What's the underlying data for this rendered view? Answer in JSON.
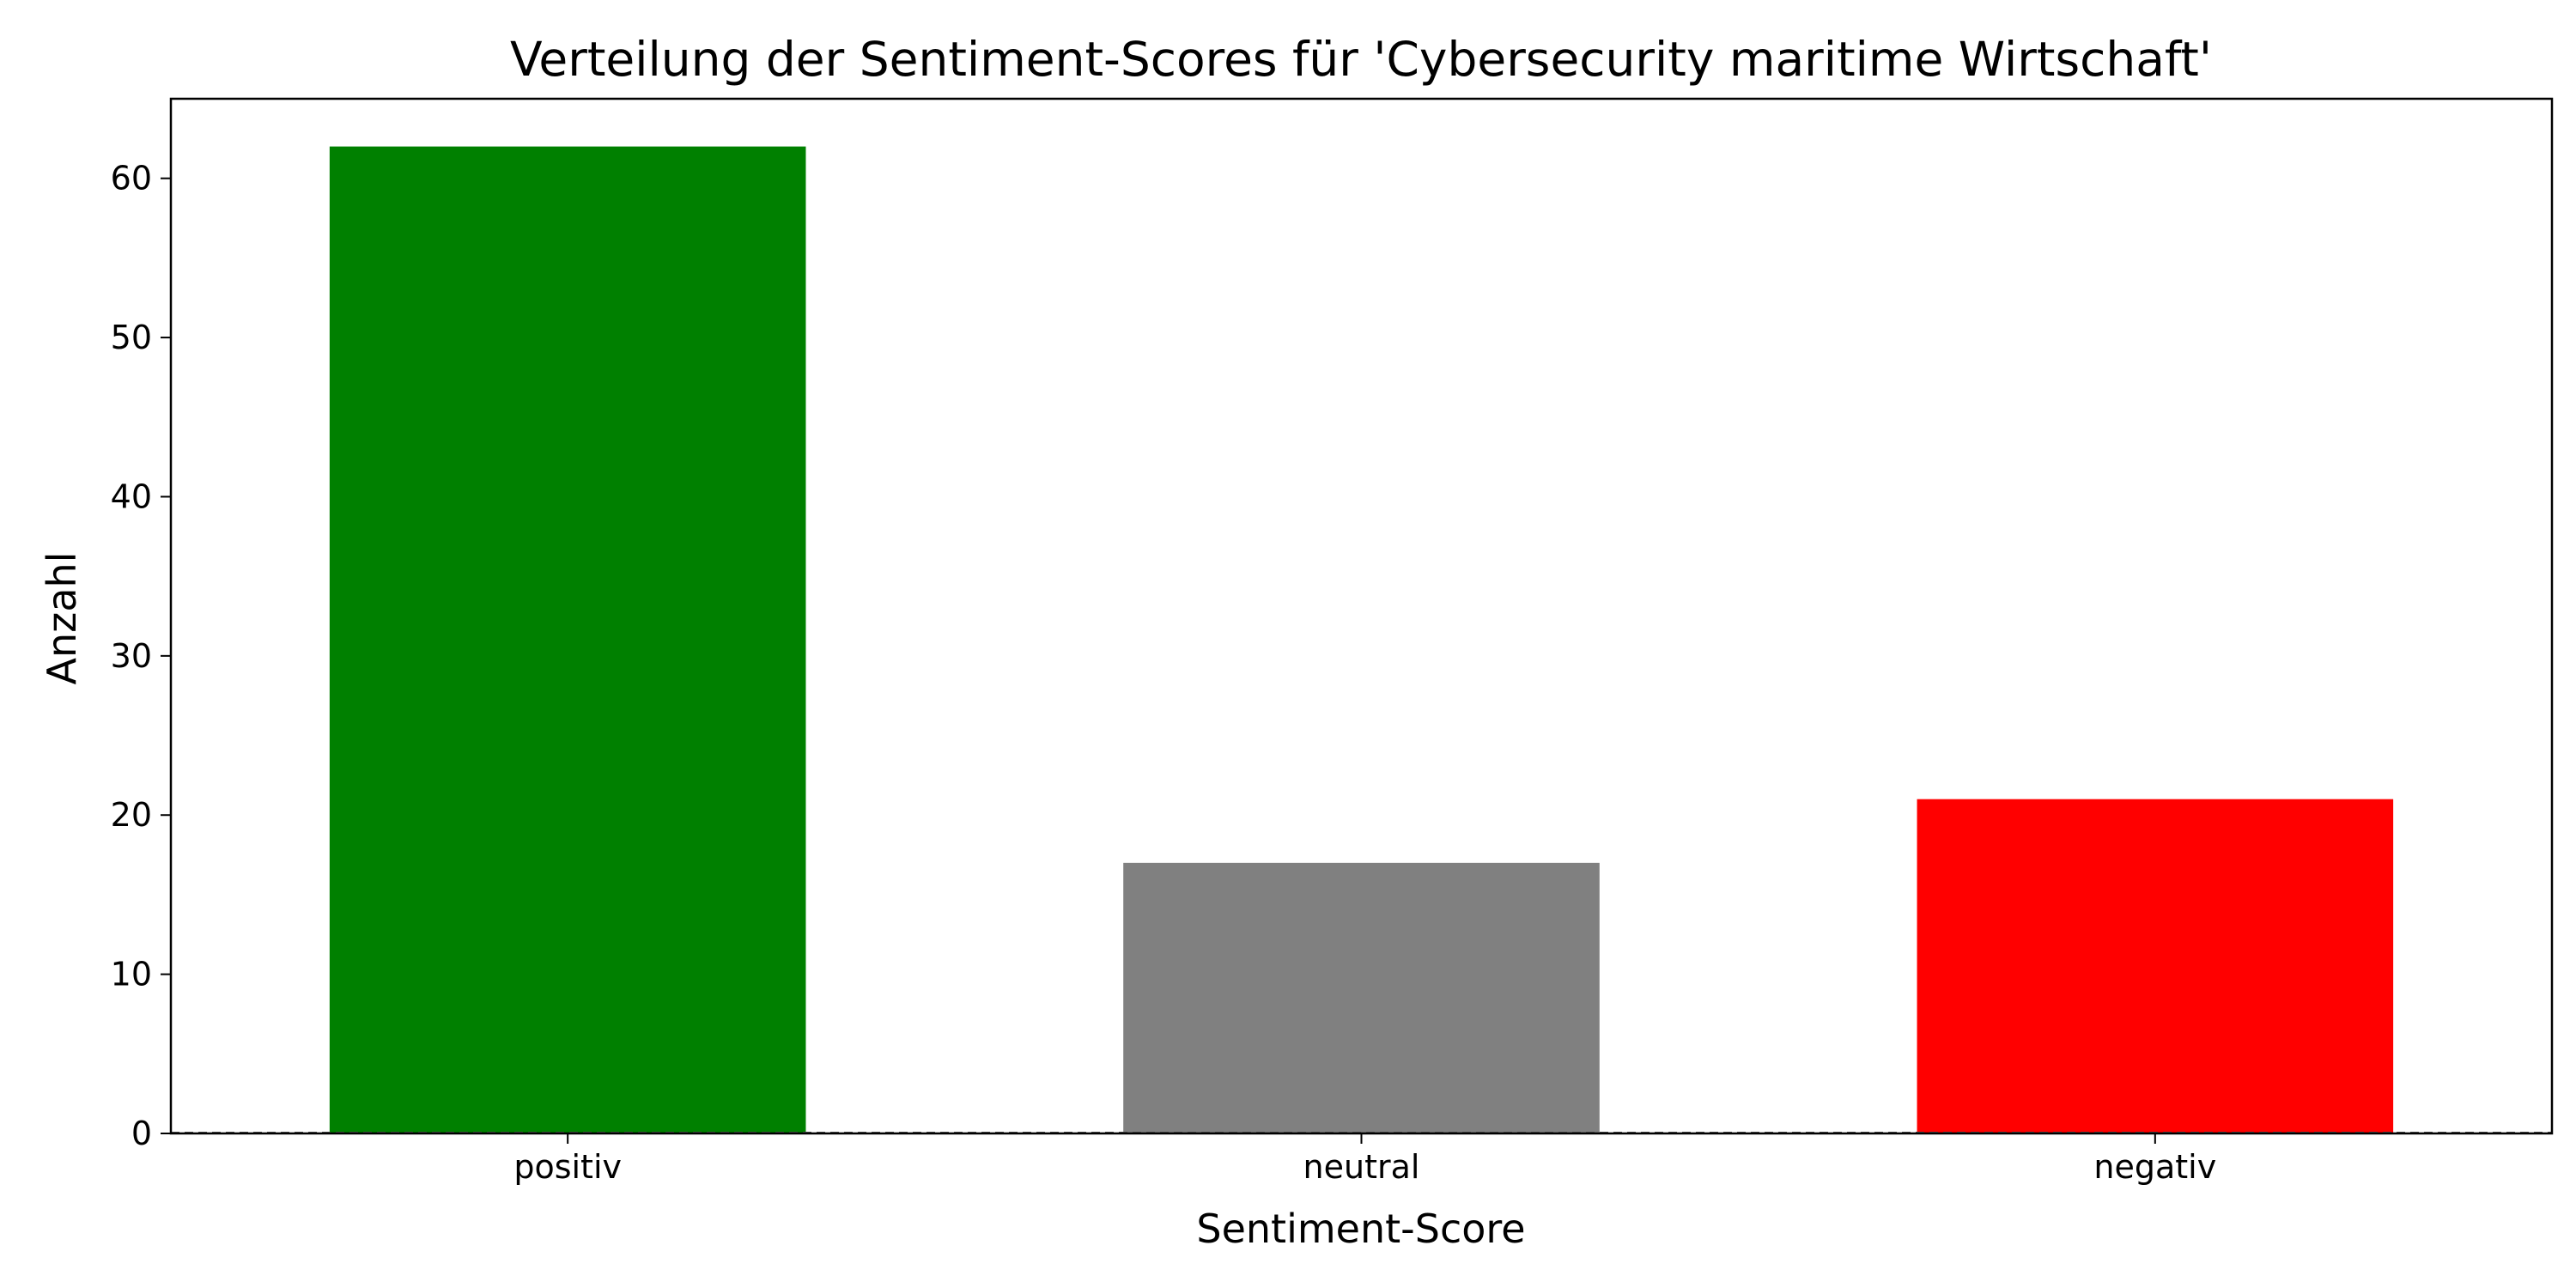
{
  "chart_data": {
    "type": "bar",
    "title": "Verteilung der Sentiment-Scores für 'Cybersecurity maritime Wirtschaft'",
    "xlabel": "Sentiment-Score",
    "ylabel": "Anzahl",
    "categories": [
      "positiv",
      "neutral",
      "negativ"
    ],
    "values": [
      62,
      17,
      21
    ],
    "colors": [
      "#008000",
      "#808080",
      "#ff0000"
    ],
    "ylim": [
      0,
      65
    ],
    "yticks": [
      0,
      10,
      20,
      30,
      40,
      50,
      60
    ],
    "grid": false,
    "legend": "none",
    "reference_line": {
      "y": 0,
      "style": "dashed",
      "color": "#555555"
    }
  }
}
